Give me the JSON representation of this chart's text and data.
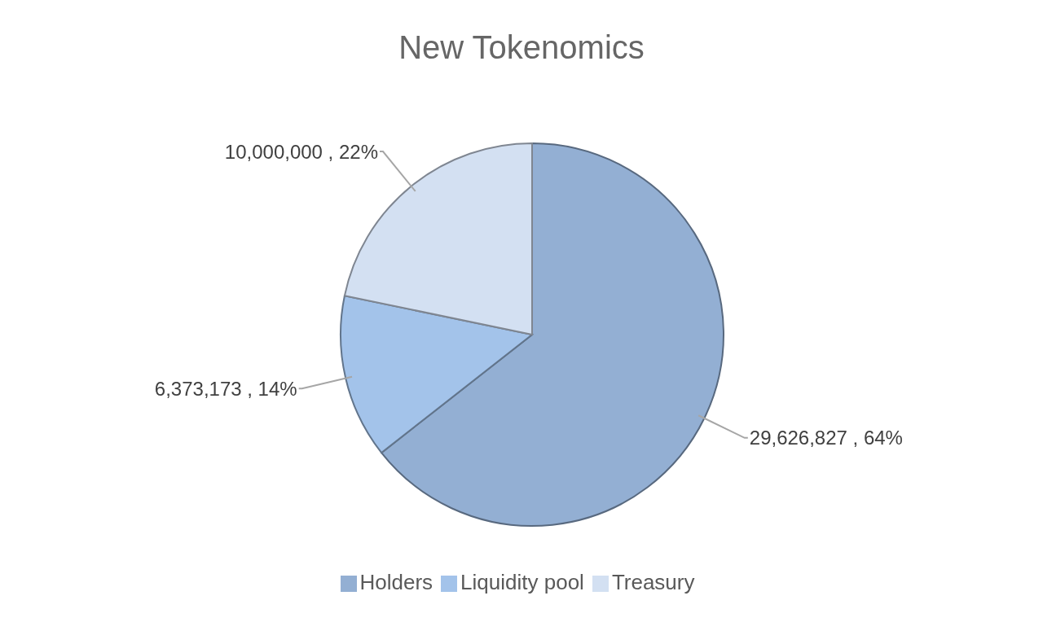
{
  "chart_data": {
    "type": "pie",
    "title": "New Tokenomics",
    "categories": [
      "Holders",
      "Liquidity pool",
      "Treasury"
    ],
    "values": [
      29626827,
      6373173,
      10000000
    ],
    "colors": [
      "#93afd3",
      "#a3c3ea",
      "#d3e0f2"
    ],
    "value_labels": [
      "29,626,827 , 64%",
      "6,373,173 , 14%",
      "10,000,000 , 22%"
    ],
    "legend": "bottom"
  }
}
